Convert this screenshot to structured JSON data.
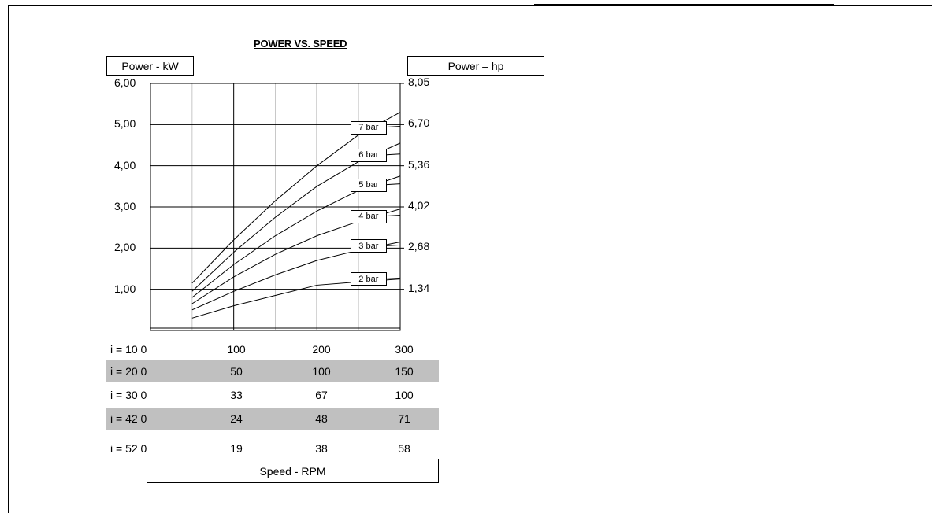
{
  "chart_data": {
    "type": "line",
    "title": "POWER VS. SPEED",
    "ylabel_left": "Power - kW",
    "ylabel_right": "Power – hp",
    "xlabel": "Speed - RPM",
    "ylim": [
      0,
      6
    ],
    "xlim": [
      0,
      300
    ],
    "yticks_left": [
      "6,00",
      "5,00",
      "4,00",
      "3,00",
      "2,00",
      "1,00"
    ],
    "yticks_left_values": [
      6,
      5,
      4,
      3,
      2,
      1
    ],
    "yticks_right": [
      "8,05",
      "6,70",
      "5,36",
      "4,02",
      "2,68",
      "1,34"
    ],
    "yticks_right_values": [
      6,
      5,
      4,
      3,
      2,
      1
    ],
    "series": [
      {
        "name": "2 bar",
        "x": [
          50,
          100,
          150,
          200,
          250,
          300
        ],
        "y": [
          0.3,
          0.6,
          0.85,
          1.1,
          1.18,
          1.25
        ]
      },
      {
        "name": "3 bar",
        "x": [
          50,
          100,
          150,
          200,
          250,
          300
        ],
        "y": [
          0.5,
          0.95,
          1.35,
          1.7,
          1.95,
          2.15
        ]
      },
      {
        "name": "4 bar",
        "x": [
          50,
          100,
          150,
          200,
          250,
          300
        ],
        "y": [
          0.65,
          1.3,
          1.85,
          2.3,
          2.65,
          2.95
        ]
      },
      {
        "name": "5 bar",
        "x": [
          50,
          100,
          150,
          200,
          250,
          300
        ],
        "y": [
          0.8,
          1.6,
          2.3,
          2.9,
          3.4,
          3.75
        ]
      },
      {
        "name": "6 bar",
        "x": [
          50,
          100,
          150,
          200,
          250,
          300
        ],
        "y": [
          0.95,
          1.9,
          2.75,
          3.5,
          4.1,
          4.55
        ]
      },
      {
        "name": "7 bar",
        "x": [
          50,
          100,
          150,
          200,
          250,
          300
        ],
        "y": [
          1.15,
          2.2,
          3.15,
          4.0,
          4.75,
          5.3
        ]
      }
    ],
    "grid": true,
    "speed_table": [
      {
        "ratio": "i = 10 0",
        "values": [
          "100",
          "200",
          "300"
        ]
      },
      {
        "ratio": "i = 20 0",
        "values": [
          "50",
          "100",
          "150"
        ]
      },
      {
        "ratio": "i = 30 0",
        "values": [
          "33",
          "67",
          "100"
        ]
      },
      {
        "ratio": "i = 42 0",
        "values": [
          "24",
          "48",
          "71"
        ]
      },
      {
        "ratio": "i = 52 0",
        "values": [
          "19",
          "38",
          "58"
        ]
      }
    ]
  }
}
